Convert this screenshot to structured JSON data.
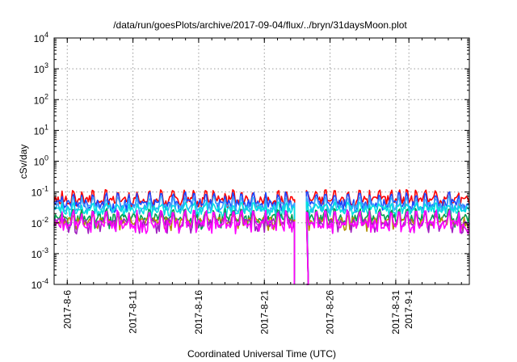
{
  "chart_data": {
    "type": "line",
    "title": "/data/run/goesPlots/archive/2017-09-04/flux/../bryn/31daysMoon.plot",
    "xlabel": "Coordinated Universal Time (UTC)",
    "ylabel": "cSv/day",
    "yscale": "log",
    "ylim": [
      0.0001,
      10000
    ],
    "xlim_days": [
      0,
      31.6
    ],
    "y_ticks": [
      {
        "base": "10",
        "exp": "-4"
      },
      {
        "base": "10",
        "exp": "-3"
      },
      {
        "base": "10",
        "exp": "-2"
      },
      {
        "base": "10",
        "exp": "-1"
      },
      {
        "base": "10",
        "exp": "0"
      },
      {
        "base": "10",
        "exp": "1"
      },
      {
        "base": "10",
        "exp": "2"
      },
      {
        "base": "10",
        "exp": "3"
      },
      {
        "base": "10",
        "exp": "4"
      }
    ],
    "x_ticks": [
      {
        "label": "2017-8-6",
        "day": 1
      },
      {
        "label": "2017-8-11",
        "day": 6
      },
      {
        "label": "2017-8-16",
        "day": 11
      },
      {
        "label": "2017-8-21",
        "day": 16
      },
      {
        "label": "2017-8-26",
        "day": 21
      },
      {
        "label": "2017-8-31",
        "day": 26
      },
      {
        "label": "2017-9-1",
        "day": 27
      }
    ],
    "data_gap_days": [
      18.3,
      19.2
    ],
    "series": [
      {
        "name": "red",
        "color": "#ff0000",
        "level": 0.055,
        "spike": 0.1,
        "dip": 0.035
      },
      {
        "name": "blue",
        "color": "#1a46ff",
        "level": 0.042,
        "spike": 0.085,
        "dip": 0.025
      },
      {
        "name": "sky",
        "color": "#3aa6ff",
        "level": 0.033,
        "spike": 0.06,
        "dip": 0.022
      },
      {
        "name": "cyan",
        "color": "#00e0e0",
        "level": 0.026,
        "spike": 0.04,
        "dip": 0.016
      },
      {
        "name": "green",
        "color": "#00a050",
        "level": 0.014,
        "spike": 0.025,
        "dip": 0.007
      },
      {
        "name": "olive",
        "color": "#b09000",
        "level": 0.011,
        "spike": 0.018,
        "dip": 0.006
      },
      {
        "name": "purple",
        "color": "#a020c0",
        "level": 0.01,
        "spike": 0.02,
        "dip": 0.005
      },
      {
        "name": "magenta",
        "color": "#ff00ff",
        "level": 0.009,
        "spike": 0.022,
        "dip": 0.005
      }
    ]
  }
}
